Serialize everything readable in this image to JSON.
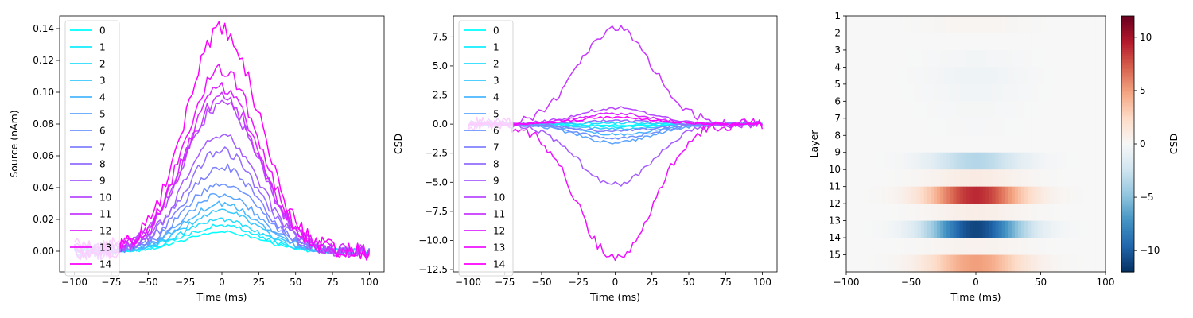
{
  "figure": {
    "colormaps": {
      "series_gradient": [
        "#00ffff",
        "#ff00ff"
      ],
      "heatmap": "RdBu_r"
    }
  },
  "chart_data": [
    {
      "type": "line",
      "xlabel": "Time (ms)",
      "ylabel": "Source (nAm)",
      "xlim": [
        -110,
        110
      ],
      "ylim": [
        -0.013,
        0.148
      ],
      "xticks": [
        -100,
        -75,
        -50,
        -25,
        0,
        25,
        50,
        75,
        100
      ],
      "yticks": [
        0.0,
        0.02,
        0.04,
        0.06,
        0.08,
        0.1,
        0.12,
        0.14
      ],
      "ytick_labels": [
        "0.00",
        "0.02",
        "0.04",
        "0.06",
        "0.08",
        "0.10",
        "0.12",
        "0.14"
      ],
      "grid": false,
      "legend": {
        "position": "upper-left",
        "entries": [
          "0",
          "1",
          "2",
          "3",
          "4",
          "5",
          "6",
          "7",
          "8",
          "9",
          "10",
          "11",
          "12",
          "13",
          "14"
        ]
      },
      "curve_shape": {
        "x_start": -100,
        "x_end": 100,
        "x_step": 2,
        "center": 0,
        "sigma_ms": 25,
        "flat_until": -70
      },
      "series": [
        {
          "name": "0",
          "peak": 0.012
        },
        {
          "name": "1",
          "peak": 0.016
        },
        {
          "name": "2",
          "peak": 0.02
        },
        {
          "name": "3",
          "peak": 0.025
        },
        {
          "name": "4",
          "peak": 0.03
        },
        {
          "name": "5",
          "peak": 0.036
        },
        {
          "name": "6",
          "peak": 0.043
        },
        {
          "name": "7",
          "peak": 0.053
        },
        {
          "name": "8",
          "peak": 0.063
        },
        {
          "name": "9",
          "peak": 0.072
        },
        {
          "name": "10",
          "peak": 0.093
        },
        {
          "name": "11",
          "peak": 0.097
        },
        {
          "name": "12",
          "peak": 0.102
        },
        {
          "name": "13",
          "peak": 0.115
        },
        {
          "name": "14",
          "peak": 0.14
        }
      ]
    },
    {
      "type": "line",
      "xlabel": "Time (ms)",
      "ylabel": "CSD",
      "xlim": [
        -110,
        110
      ],
      "ylim": [
        -12.7,
        9.3
      ],
      "xticks": [
        -100,
        -75,
        -50,
        -25,
        0,
        25,
        50,
        75,
        100
      ],
      "yticks": [
        -12.5,
        -10.0,
        -7.5,
        -5.0,
        -2.5,
        0.0,
        2.5,
        5.0,
        7.5
      ],
      "ytick_labels": [
        "−12.5",
        "−10.0",
        "−7.5",
        "−5.0",
        "−2.5",
        "0.0",
        "2.5",
        "5.0",
        "7.5"
      ],
      "grid": false,
      "legend": {
        "position": "upper-left",
        "entries": [
          "0",
          "1",
          "2",
          "3",
          "4",
          "5",
          "6",
          "7",
          "8",
          "9",
          "10",
          "11",
          "12",
          "13",
          "14"
        ]
      },
      "curve_shape": {
        "x_start": -100,
        "x_end": 100,
        "x_step": 2,
        "center": 0,
        "sigma_ms": 25,
        "flat_until": -70
      },
      "series": [
        {
          "name": "0",
          "peak": -0.1
        },
        {
          "name": "1",
          "peak": -0.2
        },
        {
          "name": "2",
          "peak": 0.1
        },
        {
          "name": "3",
          "peak": -0.4
        },
        {
          "name": "4",
          "peak": -0.9
        },
        {
          "name": "5",
          "peak": -1.6
        },
        {
          "name": "6",
          "peak": -1.2
        },
        {
          "name": "7",
          "peak": -0.6
        },
        {
          "name": "8",
          "peak": 0.3
        },
        {
          "name": "9",
          "peak": -5.2
        },
        {
          "name": "10",
          "peak": 1.4
        },
        {
          "name": "11",
          "peak": 8.3
        },
        {
          "name": "12",
          "peak": 0.9
        },
        {
          "name": "13",
          "peak": -11.6
        },
        {
          "name": "14",
          "peak": 0.6
        }
      ]
    },
    {
      "type": "heatmap",
      "xlabel": "Time (ms)",
      "ylabel": "Layer",
      "xlim": [
        -100,
        100
      ],
      "xticks": [
        -100,
        -50,
        0,
        50,
        100
      ],
      "ytick_labels": [
        "1",
        "2",
        "3",
        "4",
        "5",
        "6",
        "7",
        "8",
        "9",
        "10",
        "11",
        "12",
        "13",
        "14",
        "15"
      ],
      "colorbar": {
        "label": "CSD",
        "vmin": -12,
        "vmax": 12,
        "ticks": [
          -10,
          -5,
          0,
          5,
          10
        ],
        "tick_labels": [
          "−10",
          "−5",
          "0",
          "5",
          "10"
        ]
      },
      "time_profile": {
        "center": 0,
        "sigma_ms": 25
      },
      "layer_peaks": [
        0.3,
        0.0,
        -0.3,
        -0.6,
        -0.4,
        -0.2,
        -0.1,
        0.0,
        -3.5,
        1.0,
        9.0,
        0.8,
        -11.0,
        0.5,
        5.0
      ]
    }
  ]
}
